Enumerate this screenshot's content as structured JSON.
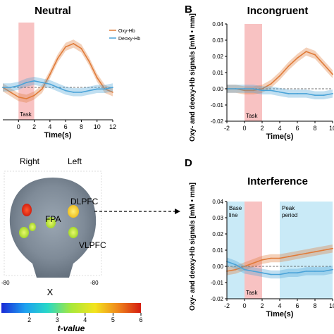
{
  "chart_data": [
    {
      "panel_letter": "",
      "title": "Neutral",
      "type": "line",
      "xlabel": "Time(s)",
      "ylabel": "",
      "xlim": [
        -2,
        12
      ],
      "ylim": [
        -0.02,
        0.04
      ],
      "x_ticks": [
        "0",
        "2",
        "4",
        "6",
        "8",
        "10",
        "12"
      ],
      "y_ticks": [],
      "shaded_regions": [
        {
          "from": 0,
          "to": 2,
          "color": "#f7b7b7",
          "label": "Task"
        }
      ],
      "legend": {
        "placement": "top-right",
        "entries": [
          "Oxy-Hb",
          "Deoxy-Hb"
        ]
      },
      "series": [
        {
          "name": "Oxy-Hb",
          "color": "#e07b39",
          "x": [
            -2,
            -1,
            0,
            1,
            2,
            3,
            4,
            5,
            6,
            7,
            8,
            9,
            10,
            11,
            12
          ],
          "y": [
            0.0,
            -0.003,
            -0.006,
            -0.007,
            -0.005,
            -0.001,
            0.008,
            0.018,
            0.025,
            0.027,
            0.024,
            0.016,
            0.006,
            -0.001,
            -0.003
          ]
        },
        {
          "name": "Deoxy-Hb",
          "color": "#4aa3d8",
          "x": [
            -2,
            -1,
            0,
            1,
            2,
            3,
            4,
            5,
            6,
            7,
            8,
            9,
            10,
            11,
            12
          ],
          "y": [
            0.0,
            0.0,
            0.001,
            0.003,
            0.004,
            0.003,
            0.002,
            0.0,
            -0.002,
            -0.003,
            -0.003,
            -0.002,
            -0.001,
            -0.001,
            0.0
          ]
        }
      ]
    },
    {
      "panel_letter": "B",
      "title": "Incongruent",
      "type": "line",
      "xlabel": "Time(s)",
      "ylabel": "Oxy- and deoxy-Hb signals [mM • mm]",
      "xlim": [
        -2,
        10
      ],
      "ylim": [
        -0.02,
        0.04
      ],
      "x_ticks": [
        "-2",
        "0",
        "2",
        "4",
        "6",
        "8",
        "10"
      ],
      "y_ticks": [
        "0.04",
        "0.03",
        "0.02",
        "0.01",
        "0.00",
        "-0.01",
        "-0.02"
      ],
      "shaded_regions": [
        {
          "from": 0,
          "to": 2,
          "color": "#f7b7b7",
          "label": "Task"
        }
      ],
      "series": [
        {
          "name": "Oxy-Hb",
          "color": "#e07b39",
          "x": [
            -2,
            -1,
            0,
            1,
            2,
            3,
            4,
            5,
            6,
            7,
            8,
            9,
            10
          ],
          "y": [
            0.0,
            0.0,
            -0.001,
            -0.001,
            0.0,
            0.003,
            0.008,
            0.014,
            0.019,
            0.023,
            0.021,
            0.015,
            0.009
          ]
        },
        {
          "name": "Deoxy-Hb",
          "color": "#4aa3d8",
          "x": [
            -2,
            -1,
            0,
            1,
            2,
            3,
            4,
            5,
            6,
            7,
            8,
            9,
            10
          ],
          "y": [
            0.0,
            0.0,
            0.0,
            0.0,
            -0.001,
            -0.001,
            -0.002,
            -0.003,
            -0.003,
            -0.003,
            -0.004,
            -0.004,
            -0.003
          ]
        }
      ]
    },
    {
      "panel_letter": "D",
      "title": "Interference",
      "type": "line",
      "xlabel": "Time(s)",
      "ylabel": "Oxy- and deoxy-Hb signals [mM • mm]",
      "xlim": [
        -2,
        10
      ],
      "ylim": [
        -0.02,
        0.04
      ],
      "x_ticks": [
        "-2",
        "0",
        "2",
        "4",
        "6",
        "8",
        "10"
      ],
      "y_ticks": [
        "0.04",
        "0.03",
        "0.02",
        "0.01",
        "0.00",
        "-0.01",
        "-0.02"
      ],
      "shaded_regions": [
        {
          "from": -2,
          "to": 0,
          "color": "#bfe6f6",
          "label": "Base line"
        },
        {
          "from": 0,
          "to": 2,
          "color": "#f7b7b7",
          "label": "Task"
        },
        {
          "from": 4,
          "to": 10,
          "color": "#bfe6f6",
          "label": "Peak period"
        }
      ],
      "series": [
        {
          "name": "Oxy-Hb",
          "color": "#e07b39",
          "x": [
            -2,
            -1,
            0,
            1,
            2,
            3,
            4,
            5,
            6,
            7,
            8,
            9,
            10
          ],
          "y": [
            -0.003,
            -0.002,
            0.0,
            0.002,
            0.004,
            0.005,
            0.005,
            0.006,
            0.007,
            0.008,
            0.009,
            0.01,
            0.011
          ]
        },
        {
          "name": "Deoxy-Hb",
          "color": "#4aa3d8",
          "x": [
            -2,
            -1,
            0,
            1,
            2,
            3,
            4,
            5,
            6,
            7,
            8,
            9,
            10
          ],
          "y": [
            0.003,
            0.001,
            -0.002,
            -0.003,
            -0.004,
            -0.005,
            -0.005,
            -0.004,
            -0.004,
            -0.003,
            -0.003,
            -0.003,
            -0.002
          ]
        }
      ]
    }
  ],
  "brain_map": {
    "label_right": "Right",
    "label_left": "Left",
    "regions": [
      "DLPFC",
      "FPA",
      "VLPFC"
    ],
    "axis_label": "X",
    "axis_left_tick": "-80",
    "axis_right_tick": "-80",
    "blob_colors": {
      "hot": "#e8361e",
      "warm": "#f0d030",
      "mid": "#b8e030"
    }
  },
  "colorbar": {
    "ticks": [
      "2",
      "3",
      "4",
      "5",
      "6"
    ],
    "label": "t-value",
    "colors": [
      "#1a2ad6",
      "#1ea0f0",
      "#28d8c8",
      "#a8e83a",
      "#f3e41e",
      "#f08a1c",
      "#d41c10"
    ]
  }
}
